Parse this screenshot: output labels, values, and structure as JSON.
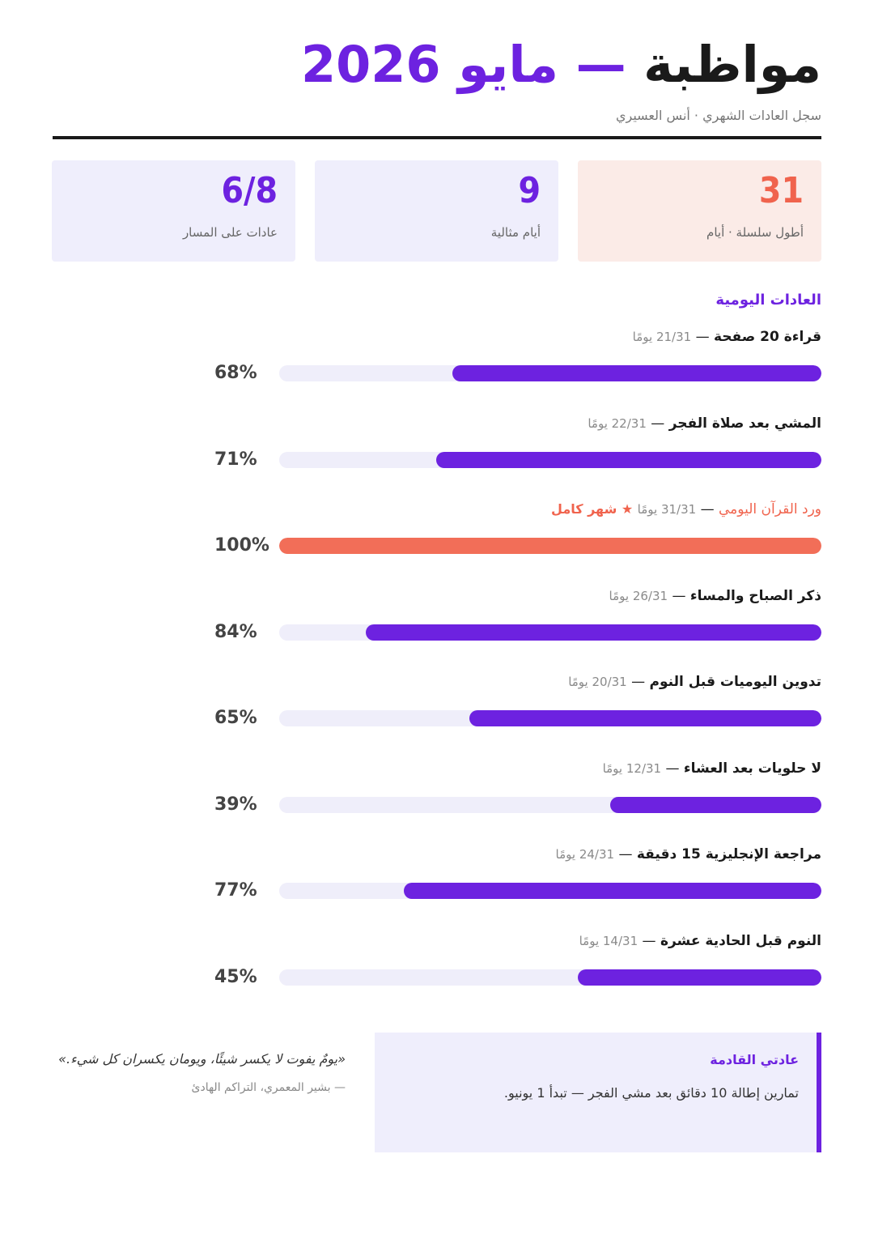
{
  "header": {
    "title_main": "مواظبة",
    "title_sep": "—",
    "title_date": "مايو 2026",
    "subtitle": "سجل العادات الشهري · أنس العسيري"
  },
  "stats": [
    {
      "value": "31",
      "label": "أطول سلسلة · أيام"
    },
    {
      "value": "9",
      "label": "أيام مثالية"
    },
    {
      "value": "6/8",
      "label": "عادات على المسار"
    }
  ],
  "section_title": "العادات اليومية",
  "habits": [
    {
      "name": "قراءة 20 صفحة",
      "days": "21/31 يومًا",
      "pct_label": "68%",
      "pct": 68
    },
    {
      "name": "المشي بعد صلاة الفجر",
      "days": "22/31 يومًا",
      "pct_label": "71%",
      "pct": 71
    },
    {
      "name": "ورد القرآن اليومي",
      "days": "31/31 يومًا",
      "badge": "★ شهر كامل",
      "pct_label": "100%",
      "pct": 100
    },
    {
      "name": "ذكر الصباح والمساء",
      "days": "26/31 يومًا",
      "pct_label": "84%",
      "pct": 84
    },
    {
      "name": "تدوين اليوميات قبل النوم",
      "days": "20/31 يومًا",
      "pct_label": "65%",
      "pct": 65
    },
    {
      "name": "لا حلويات بعد العشاء",
      "days": "12/31 يومًا",
      "pct_label": "39%",
      "pct": 39
    },
    {
      "name": "مراجعة الإنجليزية 15 دقيقة",
      "days": "24/31 يومًا",
      "pct_label": "77%",
      "pct": 77
    },
    {
      "name": "النوم قبل الحادية عشرة",
      "days": "14/31 يومًا",
      "pct_label": "45%",
      "pct": 45
    }
  ],
  "next_habit": {
    "title": "عادتي القادمة",
    "text": "تمارين إطالة 10 دقائق بعد مشي الفجر — تبدأ 1 يونيو."
  },
  "quote": {
    "text": "«يومٌ يفوت لا يكسر شيئًا، ويومان يكسران كل شيء.»",
    "author": "— بشير المعمري، التراكم الهادئ"
  },
  "colors": {
    "accent": "#6d22e0",
    "highlight": "#f0634d",
    "track": "#efeefa"
  }
}
